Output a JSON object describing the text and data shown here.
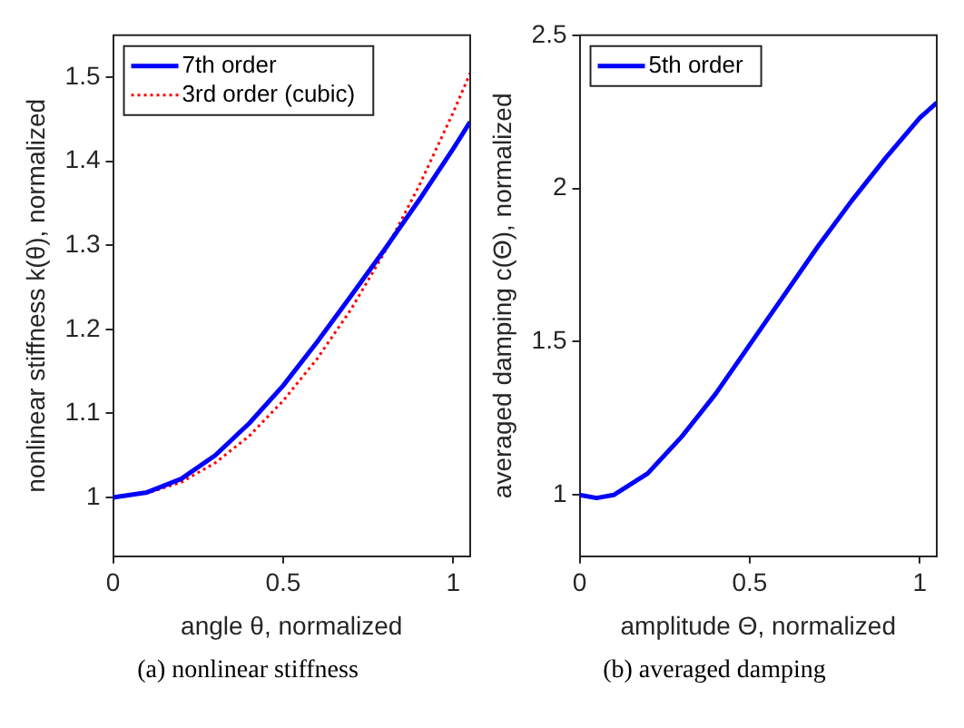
{
  "chart_data": [
    {
      "type": "line",
      "title": "(a) nonlinear stiffness",
      "xlabel": "angle θ, normalized",
      "ylabel": "nonlinear stiffness k(θ), normalized",
      "xlim": [
        0,
        1.05
      ],
      "ylim": [
        0.93,
        1.55
      ],
      "xticks": [
        0,
        0.5,
        1
      ],
      "yticks": [
        1,
        1.1,
        1.2,
        1.3,
        1.4,
        1.5
      ],
      "grid": false,
      "legend": "top left",
      "series": [
        {
          "name": "7th order",
          "color": "#0000ff",
          "line_style": "solid",
          "x": [
            0,
            0.1,
            0.2,
            0.3,
            0.4,
            0.5,
            0.6,
            0.7,
            0.8,
            0.9,
            1.0,
            1.05
          ],
          "values": [
            1,
            1.006,
            1.022,
            1.05,
            1.088,
            1.133,
            1.185,
            1.24,
            1.296,
            1.354,
            1.415,
            1.447
          ]
        },
        {
          "name": "3rd order (cubic)",
          "color": "#ff0000",
          "line_style": "dotted",
          "x": [
            0,
            0.1,
            0.2,
            0.3,
            0.4,
            0.5,
            0.6,
            0.7,
            0.8,
            0.9,
            1.0,
            1.05
          ],
          "values": [
            1,
            1.005,
            1.018,
            1.041,
            1.073,
            1.115,
            1.165,
            1.224,
            1.293,
            1.371,
            1.458,
            1.505
          ]
        }
      ]
    },
    {
      "type": "line",
      "title": "(b) averaged damping",
      "xlabel": "amplitude Θ, normalized",
      "ylabel": "averaged damping c(Θ), normalized",
      "xlim": [
        0,
        1.05
      ],
      "ylim": [
        0.8,
        2.5
      ],
      "xticks": [
        0,
        0.5,
        1
      ],
      "yticks": [
        1,
        1.5,
        2,
        2.5
      ],
      "grid": false,
      "legend": "top left",
      "series": [
        {
          "name": "5th order",
          "color": "#0000ff",
          "line_style": "solid",
          "x": [
            0,
            0.05,
            0.1,
            0.2,
            0.3,
            0.4,
            0.5,
            0.6,
            0.7,
            0.8,
            0.9,
            1.0,
            1.05
          ],
          "values": [
            1,
            0.99,
            1,
            1.07,
            1.19,
            1.33,
            1.49,
            1.65,
            1.81,
            1.96,
            2.1,
            2.23,
            2.28
          ]
        }
      ]
    }
  ]
}
